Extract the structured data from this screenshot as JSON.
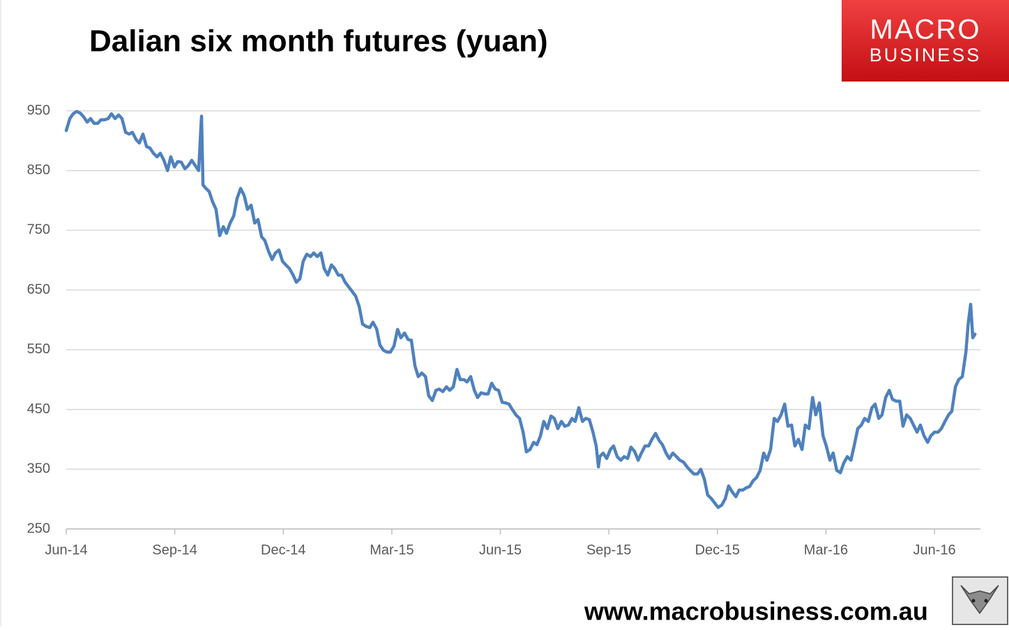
{
  "title": "Dalian six month futures (yuan)",
  "logo": {
    "line1": "MACRO",
    "line2": "BUSINESS"
  },
  "website": "www.macrobusiness.com.au",
  "chart_data": {
    "type": "line",
    "color": "#4f81bd",
    "grid": true,
    "xlim": [
      0,
      25.27
    ],
    "ylim": [
      250,
      950
    ],
    "yticks": [
      250,
      350,
      450,
      550,
      650,
      750,
      850,
      950
    ],
    "xticks": [
      {
        "value": 0,
        "label": "Jun-14"
      },
      {
        "value": 3,
        "label": "Sep-14"
      },
      {
        "value": 6,
        "label": "Dec-14"
      },
      {
        "value": 9,
        "label": "Mar-15"
      },
      {
        "value": 12,
        "label": "Jun-15"
      },
      {
        "value": 15,
        "label": "Sep-15"
      },
      {
        "value": 18,
        "label": "Dec-15"
      },
      {
        "value": 21,
        "label": "Mar-16"
      },
      {
        "value": 24,
        "label": "Jun-16"
      }
    ],
    "x": [
      0,
      0.1,
      0.19,
      0.29,
      0.39,
      0.48,
      0.58,
      0.67,
      0.77,
      0.87,
      0.96,
      1.06,
      1.16,
      1.25,
      1.35,
      1.45,
      1.54,
      1.64,
      1.74,
      1.83,
      1.93,
      2.02,
      2.12,
      2.22,
      2.31,
      2.41,
      2.51,
      2.6,
      2.7,
      2.8,
      2.89,
      2.99,
      3.08,
      3.18,
      3.28,
      3.37,
      3.47,
      3.57,
      3.66,
      3.74,
      3.78,
      3.86,
      3.95,
      4.05,
      4.14,
      4.24,
      4.34,
      4.43,
      4.53,
      4.63,
      4.72,
      4.82,
      4.92,
      5.01,
      5.11,
      5.21,
      5.3,
      5.4,
      5.49,
      5.59,
      5.69,
      5.78,
      5.88,
      5.98,
      6.07,
      6.17,
      6.27,
      6.36,
      6.46,
      6.55,
      6.65,
      6.75,
      6.84,
      6.94,
      7.04,
      7.13,
      7.23,
      7.33,
      7.42,
      7.52,
      7.61,
      7.71,
      7.81,
      7.9,
      8.0,
      8.1,
      8.19,
      8.29,
      8.39,
      8.48,
      8.58,
      8.67,
      8.77,
      8.87,
      8.96,
      9.06,
      9.16,
      9.25,
      9.35,
      9.45,
      9.54,
      9.64,
      9.73,
      9.83,
      9.93,
      10.02,
      10.12,
      10.22,
      10.31,
      10.41,
      10.51,
      10.6,
      10.7,
      10.8,
      10.89,
      10.99,
      11.08,
      11.18,
      11.28,
      11.37,
      11.47,
      11.57,
      11.66,
      11.76,
      11.86,
      11.95,
      12.05,
      12.14,
      12.24,
      12.34,
      12.43,
      12.53,
      12.63,
      12.72,
      12.82,
      12.92,
      13.01,
      13.11,
      13.2,
      13.3,
      13.4,
      13.49,
      13.59,
      13.69,
      13.78,
      13.88,
      13.98,
      14.07,
      14.17,
      14.27,
      14.36,
      14.46,
      14.56,
      14.65,
      14.71,
      14.75,
      14.84,
      14.94,
      15.04,
      15.13,
      15.23,
      15.33,
      15.42,
      15.52,
      15.61,
      15.71,
      15.81,
      15.9,
      16.0,
      16.1,
      16.19,
      16.29,
      16.39,
      16.48,
      16.58,
      16.67,
      16.77,
      16.87,
      16.96,
      17.06,
      17.16,
      17.25,
      17.35,
      17.45,
      17.54,
      17.64,
      17.73,
      17.83,
      17.93,
      18.02,
      18.12,
      18.22,
      18.31,
      18.41,
      18.51,
      18.6,
      18.7,
      18.8,
      18.89,
      18.99,
      19.08,
      19.18,
      19.28,
      19.37,
      19.47,
      19.57,
      19.66,
      19.76,
      19.86,
      19.95,
      20.05,
      20.14,
      20.24,
      20.34,
      20.43,
      20.53,
      20.63,
      20.72,
      20.82,
      20.92,
      21.01,
      21.11,
      21.2,
      21.3,
      21.4,
      21.49,
      21.59,
      21.69,
      21.78,
      21.88,
      21.98,
      22.07,
      22.17,
      22.27,
      22.36,
      22.46,
      22.55,
      22.65,
      22.75,
      22.84,
      22.94,
      23.04,
      23.13,
      23.23,
      23.33,
      23.42,
      23.52,
      23.61,
      23.71,
      23.81,
      23.9,
      24.0,
      24.1,
      24.19,
      24.29,
      24.39,
      24.48,
      24.58,
      24.67,
      24.77,
      24.87,
      24.93,
      25.0,
      25.06,
      25.12
    ],
    "values": [
      917,
      937,
      945,
      949,
      946,
      940,
      931,
      937,
      929,
      929,
      935,
      935,
      937,
      945,
      937,
      943,
      937,
      914,
      911,
      914,
      902,
      896,
      911,
      890,
      888,
      879,
      873,
      879,
      867,
      850,
      873,
      856,
      865,
      864,
      853,
      858,
      867,
      858,
      850,
      941,
      826,
      820,
      815,
      797,
      785,
      741,
      756,
      745,
      762,
      774,
      803,
      820,
      808,
      785,
      792,
      762,
      768,
      739,
      733,
      715,
      701,
      712,
      717,
      698,
      692,
      686,
      675,
      663,
      669,
      698,
      710,
      706,
      712,
      706,
      712,
      686,
      675,
      692,
      686,
      675,
      675,
      663,
      655,
      648,
      640,
      622,
      593,
      589,
      587,
      596,
      585,
      558,
      549,
      546,
      546,
      556,
      584,
      570,
      578,
      567,
      566,
      523,
      505,
      511,
      505,
      473,
      465,
      482,
      484,
      480,
      488,
      482,
      488,
      517,
      500,
      500,
      496,
      505,
      482,
      470,
      478,
      476,
      476,
      494,
      484,
      482,
      462,
      461,
      459,
      449,
      441,
      435,
      412,
      379,
      383,
      395,
      391,
      406,
      430,
      418,
      439,
      435,
      418,
      430,
      422,
      424,
      435,
      430,
      453,
      430,
      435,
      433,
      412,
      389,
      354,
      371,
      377,
      368,
      383,
      389,
      371,
      365,
      371,
      368,
      387,
      380,
      365,
      377,
      389,
      389,
      400,
      410,
      398,
      391,
      377,
      368,
      377,
      371,
      365,
      362,
      354,
      348,
      342,
      342,
      350,
      333,
      307,
      301,
      293,
      286,
      290,
      301,
      322,
      312,
      304,
      315,
      315,
      319,
      321,
      331,
      336,
      348,
      377,
      365,
      383,
      435,
      430,
      441,
      459,
      422,
      424,
      389,
      400,
      383,
      424,
      418,
      470,
      441,
      461,
      406,
      389,
      365,
      377,
      348,
      344,
      360,
      371,
      365,
      389,
      418,
      424,
      435,
      430,
      453,
      459,
      435,
      441,
      470,
      482,
      467,
      464,
      464,
      422,
      441,
      435,
      424,
      412,
      424,
      406,
      395,
      406,
      412,
      412,
      418,
      430,
      441,
      447,
      488,
      500,
      505,
      546,
      593,
      626,
      570,
      576
    ]
  }
}
